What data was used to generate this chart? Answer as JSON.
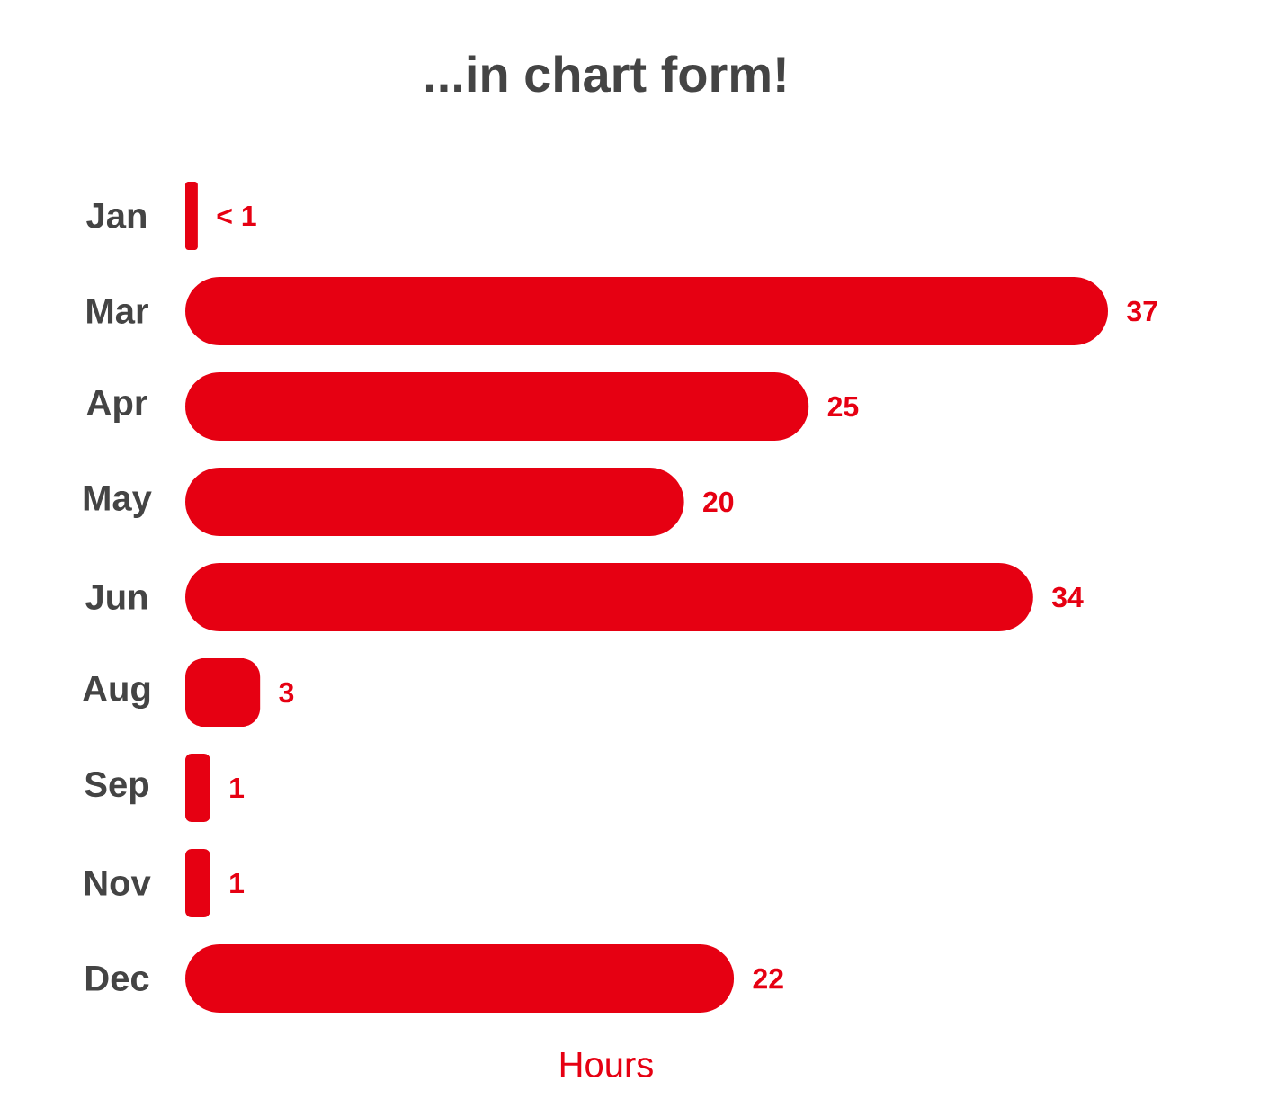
{
  "chart_data": {
    "type": "bar",
    "orientation": "horizontal",
    "title": "...in chart form!",
    "xlabel": "Hours",
    "categories": [
      "Jan",
      "Mar",
      "Apr",
      "May",
      "Jun",
      "Aug",
      "Sep",
      "Nov",
      "Dec"
    ],
    "values": [
      0.5,
      37,
      25,
      20,
      34,
      3,
      1,
      1,
      22
    ],
    "value_labels": [
      "< 1",
      "37",
      "25",
      "20",
      "34",
      "3",
      "1",
      "1",
      "22"
    ],
    "color": "#e60012"
  }
}
